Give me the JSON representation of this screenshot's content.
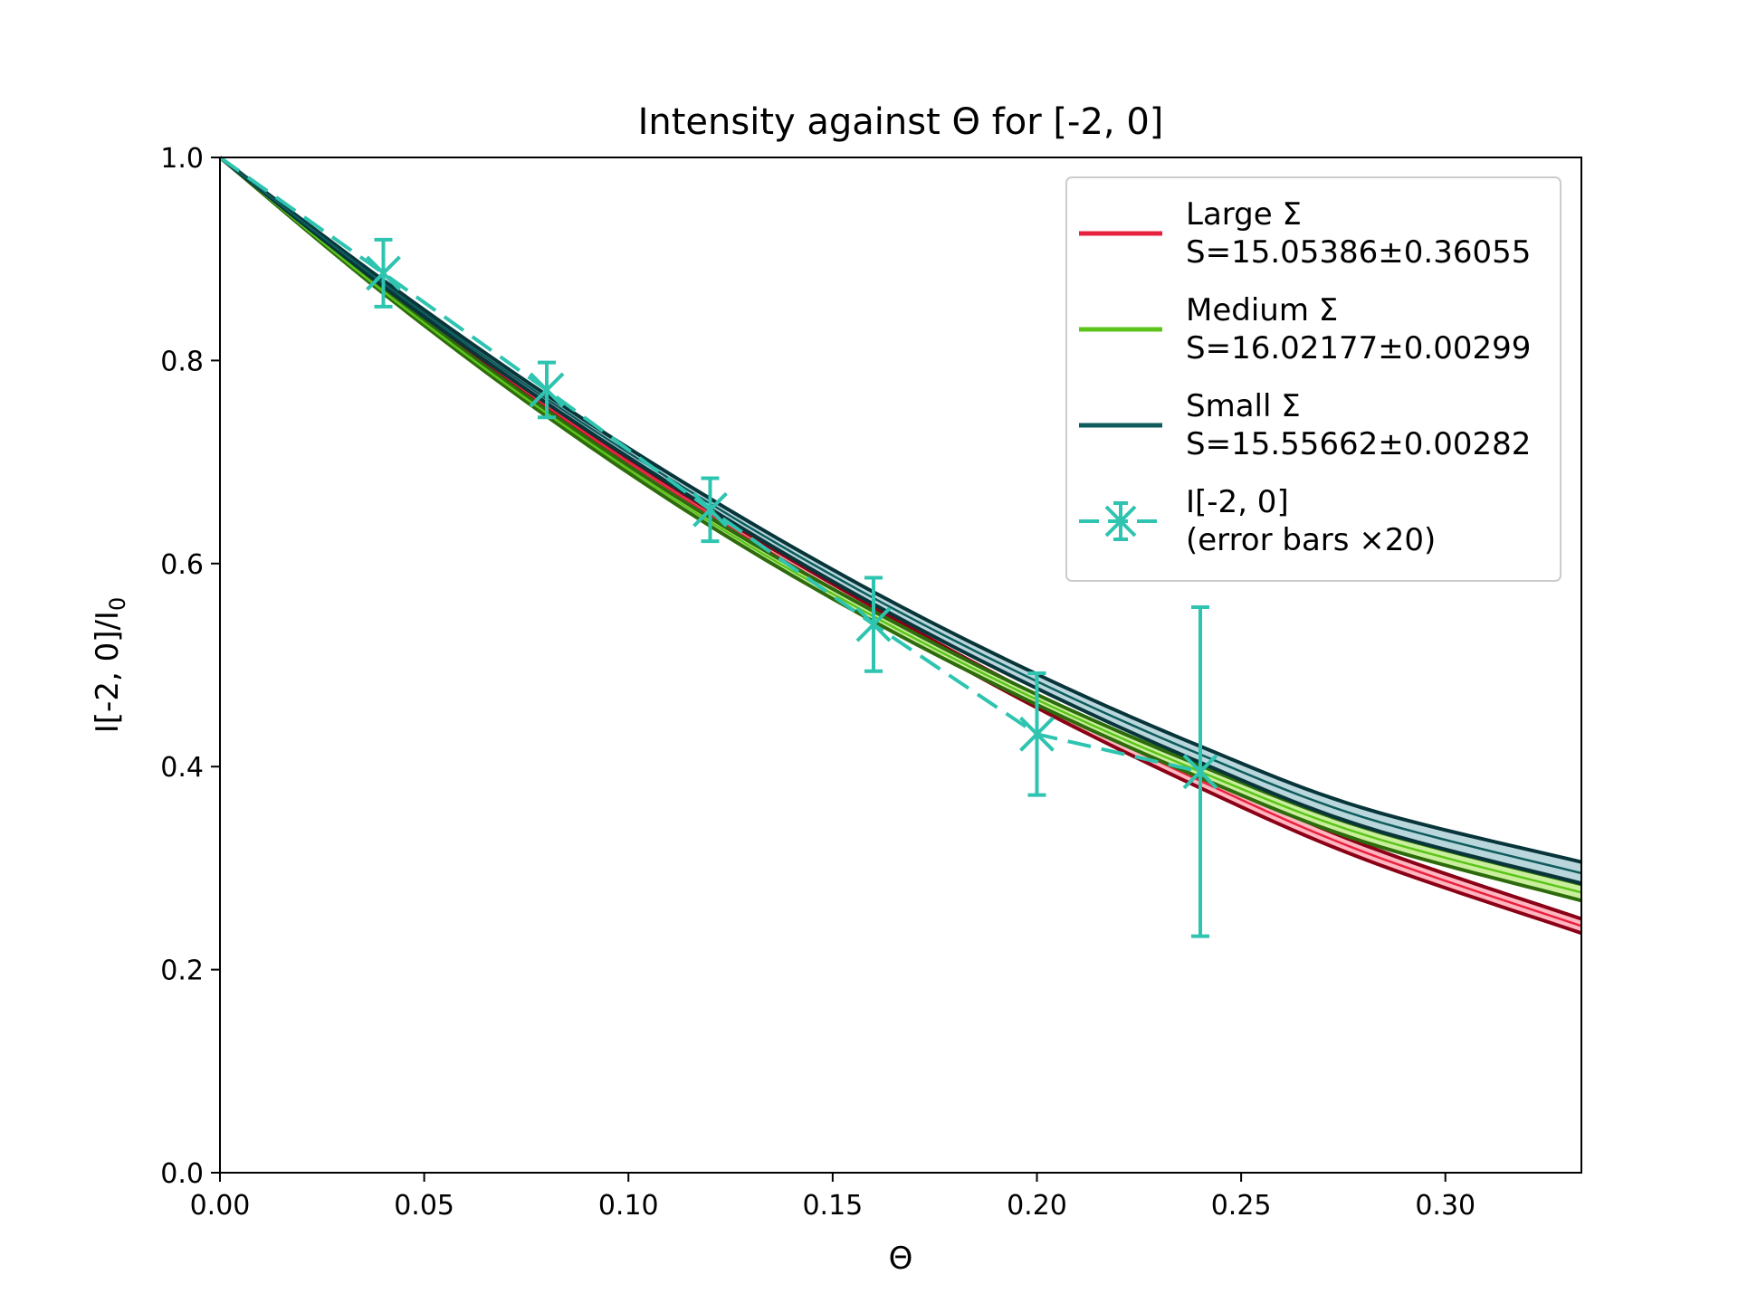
{
  "chart_data": {
    "type": "line",
    "title": "Intensity against Θ for [-2, 0]",
    "xlabel": "Θ",
    "ylabel_main": "I[-2, 0]/I",
    "ylabel_sub": "0",
    "xlim": [
      0.0,
      0.3333
    ],
    "ylim": [
      0.0,
      1.0
    ],
    "x_ticks": [
      0.0,
      0.05,
      0.1,
      0.15,
      0.2,
      0.25,
      0.3
    ],
    "x_tick_labels": [
      "0.00",
      "0.05",
      "0.10",
      "0.15",
      "0.20",
      "0.25",
      "0.30"
    ],
    "y_ticks": [
      0.0,
      0.2,
      0.4,
      0.6,
      0.8,
      1.0
    ],
    "y_tick_labels": [
      "0.0",
      "0.2",
      "0.4",
      "0.6",
      "0.8",
      "1.0"
    ],
    "grid": false,
    "legend_position": "top-right",
    "fit_series": [
      {
        "name": "Large Σ",
        "legend_line2": "S=15.05386±0.36055",
        "color": "#e8213f",
        "band_color": "#8b0016",
        "inner_color": "#ffb6c0",
        "x": [
          0.0,
          0.04,
          0.08,
          0.12,
          0.16,
          0.2,
          0.24,
          0.28,
          0.3333
        ],
        "y": [
          1.0,
          0.875,
          0.755,
          0.648,
          0.552,
          0.464,
          0.386,
          0.316,
          0.243
        ],
        "y_lower": [
          1.0,
          0.873,
          0.752,
          0.644,
          0.547,
          0.458,
          0.379,
          0.309,
          0.236
        ],
        "y_upper": [
          1.0,
          0.877,
          0.758,
          0.652,
          0.557,
          0.47,
          0.393,
          0.323,
          0.25
        ]
      },
      {
        "name": "Medium Σ",
        "legend_line2": "S=16.02177±0.00299",
        "color": "#5cc41a",
        "band_color": "#2d6b0c",
        "inner_color": "#c9ef9d",
        "x": [
          0.0,
          0.04,
          0.08,
          0.12,
          0.16,
          0.2,
          0.24,
          0.28,
          0.3333
        ],
        "y": [
          1.0,
          0.868,
          0.748,
          0.641,
          0.548,
          0.466,
          0.395,
          0.333,
          0.276
        ],
        "y_lower": [
          1.0,
          0.866,
          0.745,
          0.637,
          0.543,
          0.461,
          0.389,
          0.326,
          0.268
        ],
        "y_upper": [
          1.0,
          0.87,
          0.751,
          0.645,
          0.553,
          0.471,
          0.401,
          0.34,
          0.284
        ]
      },
      {
        "name": "Small Σ",
        "legend_line2": "S=15.55662±0.00282",
        "color": "#0e5c5c",
        "band_color": "#07353a",
        "inner_color": "#b9d6dc",
        "x": [
          0.0,
          0.04,
          0.08,
          0.12,
          0.16,
          0.2,
          0.24,
          0.28,
          0.3333
        ],
        "y": [
          1.0,
          0.876,
          0.762,
          0.659,
          0.566,
          0.484,
          0.412,
          0.35,
          0.295
        ],
        "y_lower": [
          1.0,
          0.873,
          0.758,
          0.654,
          0.56,
          0.477,
          0.404,
          0.341,
          0.285
        ],
        "y_upper": [
          1.0,
          0.879,
          0.766,
          0.664,
          0.572,
          0.491,
          0.42,
          0.359,
          0.306
        ]
      }
    ],
    "data_series": {
      "name": "I[-2, 0]",
      "legend_line2": "(error bars ×20)",
      "color": "#2ec4b0",
      "x": [
        0.0,
        0.04,
        0.08,
        0.12,
        0.16,
        0.2,
        0.24
      ],
      "y": [
        1.0,
        0.886,
        0.771,
        0.653,
        0.54,
        0.432,
        0.395
      ],
      "yerr": [
        0.0,
        0.033,
        0.027,
        0.031,
        0.046,
        0.06,
        0.162
      ]
    }
  }
}
